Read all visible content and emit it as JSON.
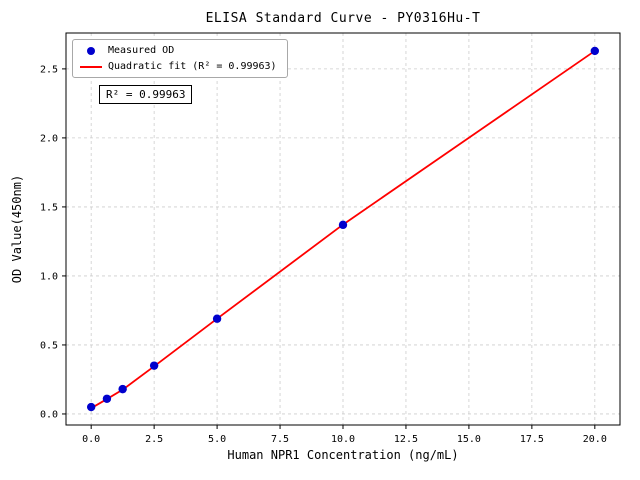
{
  "chart_data": {
    "type": "scatter",
    "title": "ELISA Standard Curve - PY0316Hu-T",
    "xlabel": "Human NPR1 Concentration (ng/mL)",
    "ylabel": "OD Value(450nm)",
    "annotation": "R² = 0.99963",
    "r_squared": 0.99963,
    "xlim": [
      -1,
      21
    ],
    "ylim": [
      -0.08,
      2.76
    ],
    "xticks": [
      0,
      2.5,
      5,
      7.5,
      10,
      12.5,
      15,
      17.5,
      20
    ],
    "yticks": [
      0,
      0.5,
      1,
      1.5,
      2,
      2.5
    ],
    "grid": true,
    "legend_position": "upper left",
    "colors": {
      "points": "#0000cd",
      "fit_line": "#ff0000",
      "grid": "#cccccc",
      "spine": "#000000"
    },
    "series": [
      {
        "name": "Measured OD",
        "kind": "scatter",
        "color": "#0000cd",
        "x": [
          0,
          0.625,
          1.25,
          2.5,
          5,
          10,
          20
        ],
        "y": [
          0.05,
          0.11,
          0.18,
          0.35,
          0.69,
          1.37,
          2.63
        ]
      },
      {
        "name": "Quadratic fit (R² = 0.99963)",
        "kind": "line",
        "color": "#ff0000",
        "x": [
          0,
          0.625,
          1.25,
          2.5,
          5,
          10,
          20
        ],
        "y": [
          0.042,
          0.108,
          0.176,
          0.345,
          0.69,
          1.372,
          2.63
        ]
      }
    ]
  }
}
